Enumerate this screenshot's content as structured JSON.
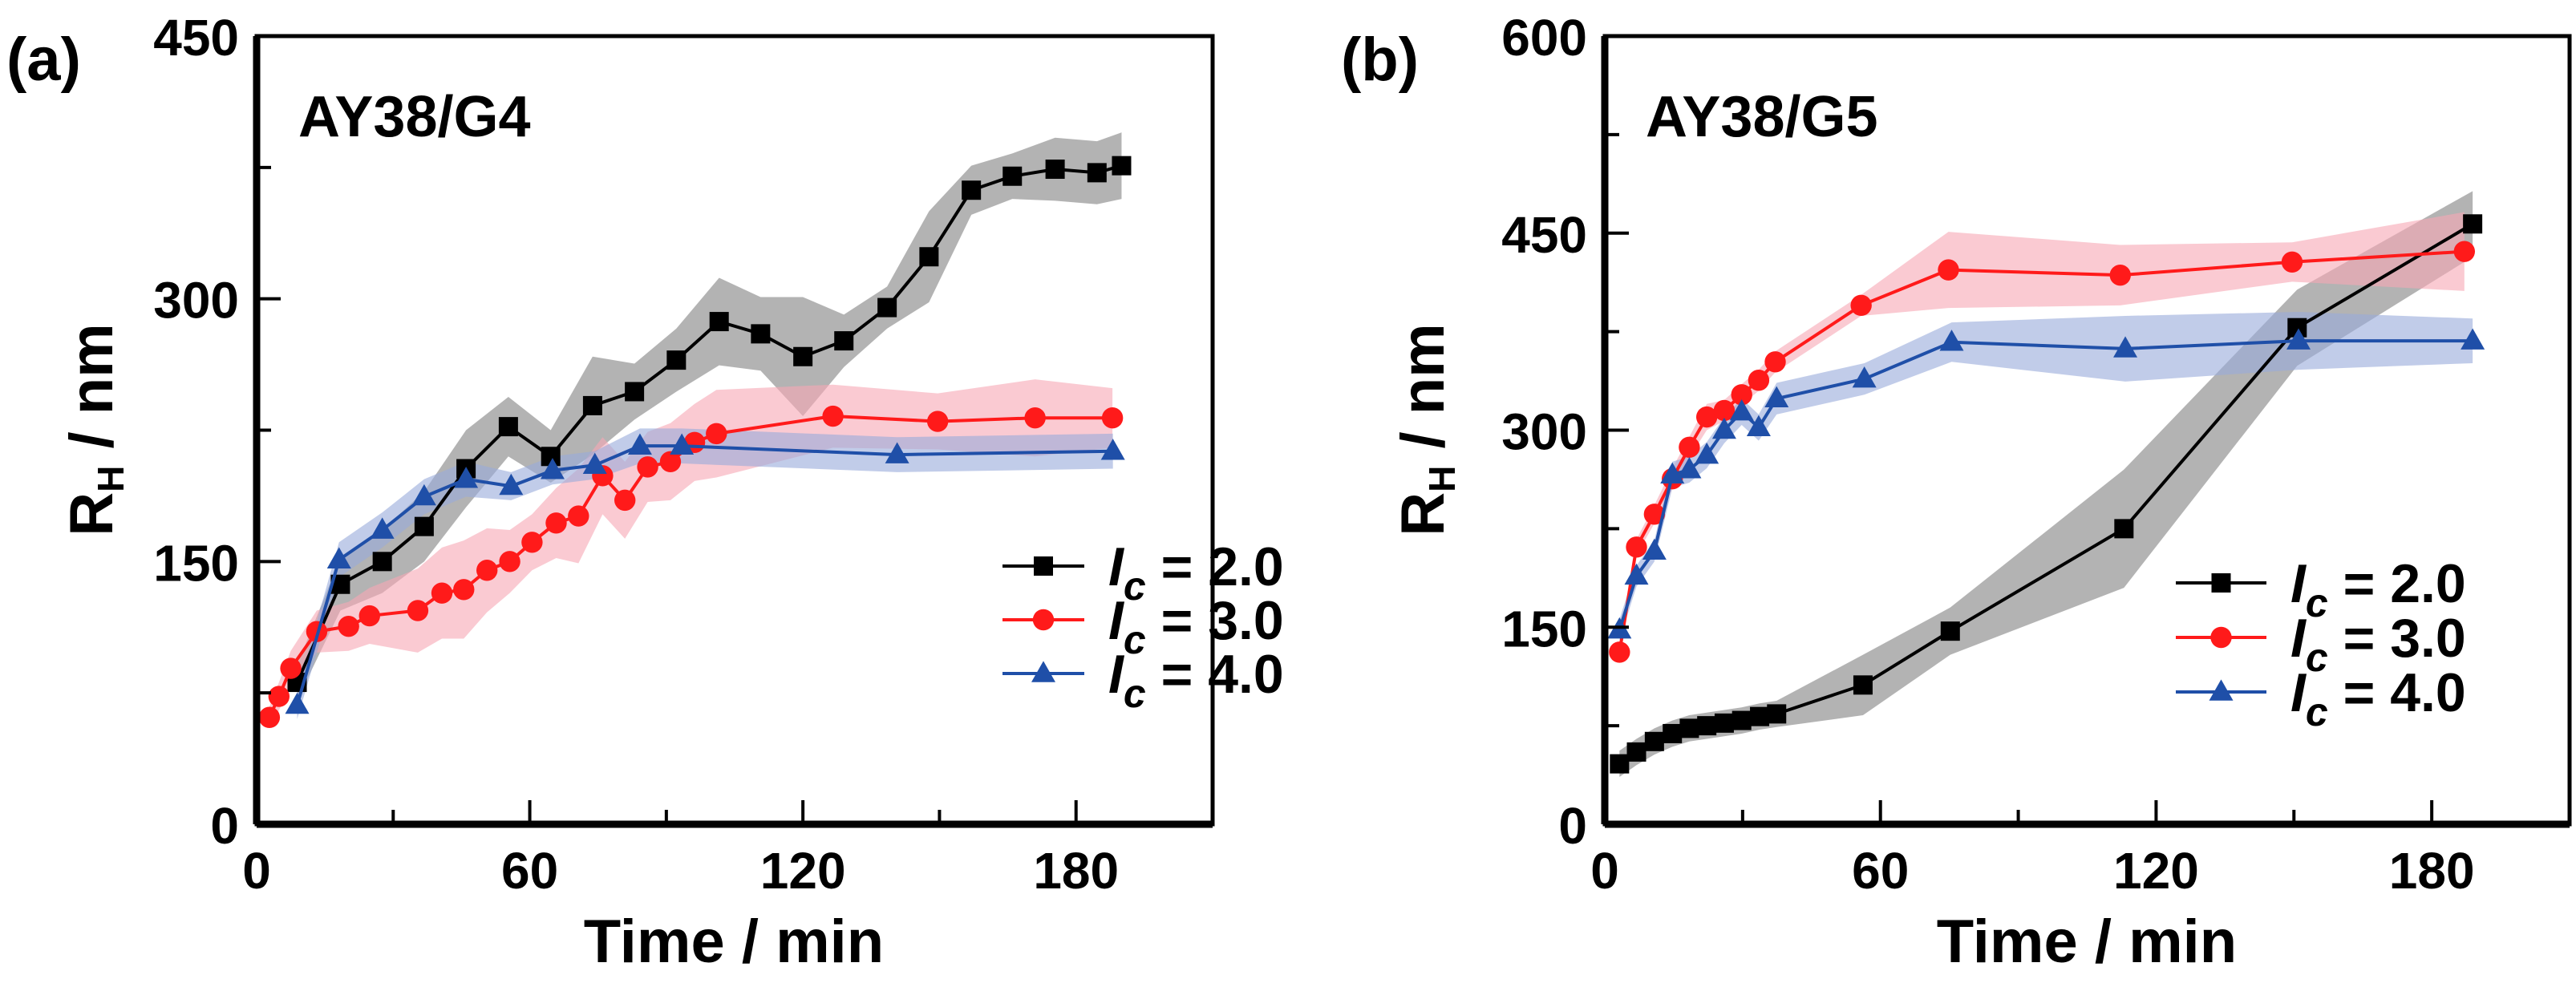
{
  "chart_data": [
    {
      "type": "line",
      "panel_label": "(a)",
      "title": "AY38/G4",
      "xlabel": "Time / min",
      "ylabel_main": "R",
      "ylabel_sub": "H",
      "ylabel_rest": " / nm",
      "xlim": [
        0,
        210
      ],
      "ylim": [
        0,
        450
      ],
      "xticks": [
        0,
        60,
        120,
        180
      ],
      "xminor": [
        30,
        90,
        150
      ],
      "yticks": [
        0,
        150,
        300,
        450
      ],
      "yminor": [
        75,
        225,
        375
      ],
      "legend_position": "bottom-right",
      "series": [
        {
          "name": "Ic = 2.0",
          "legend": {
            "symbol": "I",
            "sub": "c",
            "text": " = 2.0"
          },
          "color": "#000000",
          "band": "#808080",
          "marker": "square",
          "x": [
            8.9,
            18.4,
            27.6,
            36.8,
            46,
            55.3,
            64.6,
            73.8,
            83,
            92.2,
            101.6,
            110.7,
            120,
            129,
            138.5,
            147.7,
            157,
            166,
            175.4,
            184.6,
            190
          ],
          "y": [
            81,
            137,
            150,
            170,
            203,
            227,
            210,
            239,
            247,
            265,
            287,
            280,
            267,
            276,
            295,
            324,
            362,
            370,
            374,
            372,
            376
          ],
          "err": [
            10,
            15,
            18,
            20,
            22,
            17,
            15,
            28,
            16,
            18,
            25,
            21,
            34,
            15,
            12,
            26,
            14,
            13,
            18,
            18,
            19
          ]
        },
        {
          "name": "Ic = 3.0",
          "legend": {
            "symbol": "I",
            "sub": "c",
            "text": " = 3.0"
          },
          "color": "#ff1a1a",
          "band": "#f7a6b4",
          "marker": "circle",
          "x": [
            2.8,
            4.9,
            7.5,
            13.2,
            20.2,
            24.8,
            35.4,
            40.7,
            45.5,
            50.6,
            55.6,
            60.5,
            65.8,
            70.7,
            76,
            80.9,
            85.9,
            90.9,
            96.2,
            101,
            126.6,
            149.6,
            171,
            188
          ],
          "y": [
            61,
            73,
            89,
            110,
            113,
            119,
            122,
            132,
            134,
            145,
            150,
            161,
            172,
            176,
            199,
            185,
            204,
            207,
            218,
            223,
            233,
            230,
            232,
            232
          ],
          "err": [
            6,
            8,
            10,
            12,
            14,
            16,
            24,
            26,
            28,
            24,
            18,
            16,
            20,
            27,
            22,
            22,
            20,
            22,
            22,
            25,
            18,
            16,
            22,
            17
          ]
        },
        {
          "name": "Ic = 4.0",
          "legend": {
            "symbol": "I",
            "sub": "c",
            "text": " = 4.0"
          },
          "color": "#1f4fa8",
          "band": "#98aadb",
          "marker": "triangle",
          "x": [
            8.9,
            18.1,
            27.6,
            36.8,
            46,
            55.9,
            65,
            74.3,
            84.2,
            93.4,
            140.7,
            188.1
          ],
          "y": [
            68,
            151,
            168,
            187,
            197,
            193,
            202,
            205,
            216,
            216,
            211,
            213
          ],
          "err": [
            8,
            10,
            10,
            10,
            10,
            8,
            8,
            8,
            10,
            10,
            10,
            10
          ]
        }
      ]
    },
    {
      "type": "line",
      "panel_label": "(b)",
      "title": "AY38/G5",
      "xlabel": "Time / min",
      "ylabel_main": "R",
      "ylabel_sub": "H",
      "ylabel_rest": " / nm",
      "xlim": [
        0,
        210
      ],
      "ylim": [
        0,
        600
      ],
      "xticks": [
        0,
        60,
        120,
        180
      ],
      "xminor": [
        30,
        90,
        150
      ],
      "yticks": [
        0,
        150,
        300,
        450,
        600
      ],
      "yminor": [
        75,
        225,
        375,
        525
      ],
      "legend_position": "bottom-right",
      "series": [
        {
          "name": "Ic = 2.0",
          "legend": {
            "symbol": "I",
            "sub": "c",
            "text": " = 2.0"
          },
          "color": "#000000",
          "band": "#808080",
          "marker": "square",
          "x": [
            3.2,
            6.9,
            10.8,
            14.7,
            18.4,
            22.2,
            26,
            29.8,
            33.7,
            37.4,
            56.2,
            75.2,
            113,
            150.7,
            188.9
          ],
          "y": [
            46,
            55,
            63,
            69,
            73,
            75,
            77,
            79,
            82,
            84,
            106,
            147,
            225,
            378,
            457
          ],
          "err": [
            10,
            10,
            10,
            10,
            10,
            10,
            10,
            10,
            10,
            10,
            23,
            18,
            45,
            29,
            25
          ]
        },
        {
          "name": "Ic = 3.0",
          "legend": {
            "symbol": "I",
            "sub": "c",
            "text": " = 3.0"
          },
          "color": "#ff1a1a",
          "band": "#f7a6b4",
          "marker": "circle",
          "x": [
            3.2,
            6.9,
            10.8,
            14.7,
            18.4,
            22.2,
            26,
            29.8,
            33.5,
            37.1,
            55.8,
            74.8,
            112.2,
            149.6,
            187.1
          ],
          "y": [
            131,
            211,
            236,
            263,
            287,
            310,
            315,
            327,
            338,
            352,
            395,
            422,
            418,
            428,
            436
          ],
          "err": [
            6,
            6,
            7,
            8,
            8,
            10,
            8,
            8,
            8,
            8,
            8,
            29,
            23,
            15,
            30
          ]
        },
        {
          "name": "Ic = 4.0",
          "legend": {
            "symbol": "I",
            "sub": "c",
            "text": " = 4.0"
          },
          "color": "#1f4fa8",
          "band": "#98aadb",
          "marker": "triangle",
          "x": [
            3.2,
            6.9,
            10.8,
            14.7,
            18.4,
            22.2,
            26,
            29.8,
            33.5,
            37.4,
            56.5,
            75.5,
            113.3,
            151,
            188.9
          ],
          "y": [
            148,
            189,
            208,
            266,
            270,
            281,
            300,
            314,
            302,
            324,
            339,
            367,
            362,
            368,
            368
          ],
          "err": [
            8,
            8,
            8,
            10,
            10,
            10,
            10,
            10,
            10,
            12,
            12,
            15,
            25,
            22,
            17
          ]
        }
      ]
    }
  ]
}
